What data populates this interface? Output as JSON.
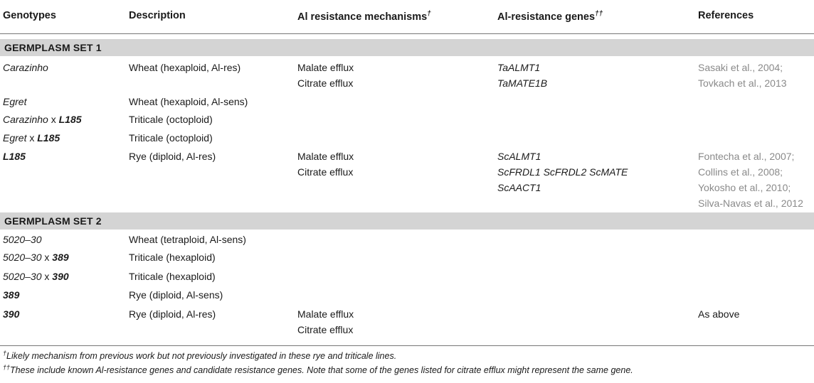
{
  "headers": {
    "genotypes": "Genotypes",
    "description": "Description",
    "mechanisms": "Al resistance mechanisms",
    "mechanisms_mark": "†",
    "genes": "Al-resistance genes",
    "genes_mark": "††",
    "references": "References"
  },
  "sets": [
    {
      "title": "GERMPLASM SET 1",
      "rows": [
        {
          "geno_italic": "Carazinho",
          "geno_x": "",
          "geno_bold": "",
          "description": "Wheat (hexaploid, Al-res)",
          "mechanisms": [
            "Malate efflux",
            "Citrate efflux"
          ],
          "genes": [
            "TaALMT1",
            "TaMATE1B"
          ],
          "references": [
            "Sasaki et al., 2004;",
            "Tovkach et al., 2013"
          ]
        },
        {
          "geno_italic": "Egret",
          "geno_x": "",
          "geno_bold": "",
          "description": "Wheat (hexaploid, Al-sens)",
          "mechanisms": [],
          "genes": [],
          "references": []
        },
        {
          "geno_italic": "Carazinho",
          "geno_x": " x ",
          "geno_bold": "L185",
          "description": "Triticale (octoploid)",
          "mechanisms": [],
          "genes": [],
          "references": []
        },
        {
          "geno_italic": "Egret",
          "geno_x": " x ",
          "geno_bold": "L185",
          "description": "Triticale (octoploid)",
          "mechanisms": [],
          "genes": [],
          "references": []
        },
        {
          "geno_italic": "",
          "geno_x": "",
          "geno_bold": "L185",
          "description": "Rye (diploid, Al-res)",
          "mechanisms": [
            "Malate efflux",
            "Citrate efflux"
          ],
          "genes": [
            "ScALMT1",
            "ScFRDL1 ScFRDL2 ScMATE",
            "ScAACT1"
          ],
          "references": [
            "Fontecha et al., 2007;",
            "Collins et al., 2008;",
            "Yokosho et al., 2010;",
            "Silva-Navas et al., 2012"
          ]
        }
      ]
    },
    {
      "title": "GERMPLASM SET 2",
      "rows": [
        {
          "geno_italic": "5020–30",
          "geno_x": "",
          "geno_bold": "",
          "description": "Wheat (tetraploid, Al-sens)",
          "mechanisms": [],
          "genes": [],
          "references": []
        },
        {
          "geno_italic": "5020–30",
          "geno_x": " x ",
          "geno_bold": "389",
          "description": "Triticale (hexaploid)",
          "mechanisms": [],
          "genes": [],
          "references": []
        },
        {
          "geno_italic": "5020–30",
          "geno_x": " x ",
          "geno_bold": "390",
          "description": "Triticale (hexaploid)",
          "mechanisms": [],
          "genes": [],
          "references": []
        },
        {
          "geno_italic": "",
          "geno_x": "",
          "geno_bold": "389",
          "description": "Rye (diploid, Al-sens)",
          "mechanisms": [],
          "genes": [],
          "references": []
        },
        {
          "geno_italic": "",
          "geno_x": "",
          "geno_bold": "390",
          "description": "Rye (diploid, Al-res)",
          "mechanisms": [
            "Malate efflux",
            "Citrate efflux"
          ],
          "genes": [],
          "references": [
            "As above"
          ]
        }
      ]
    }
  ],
  "footnotes": [
    {
      "mark": "†",
      "text": "Likely mechanism from previous work but not previously investigated in these rye and triticale lines."
    },
    {
      "mark": "††",
      "text": "These include known Al-resistance genes and candidate resistance genes. Note that some of the genes listed for citrate efflux might represent the same gene."
    }
  ]
}
